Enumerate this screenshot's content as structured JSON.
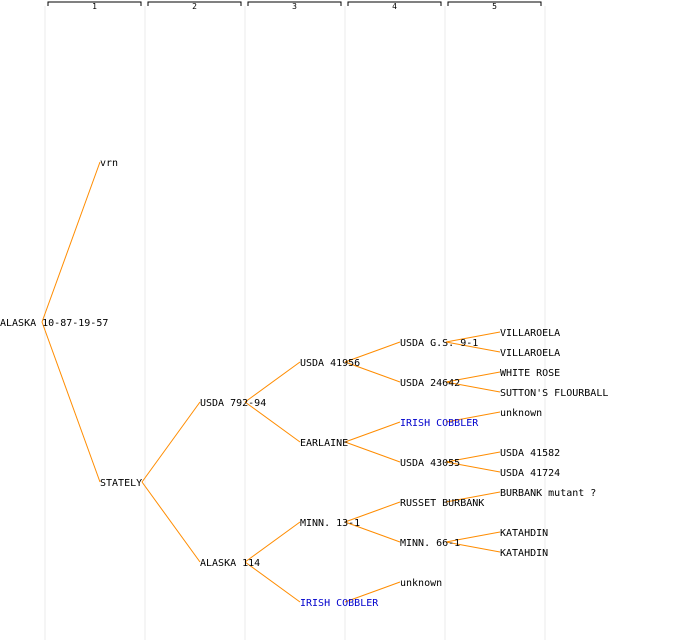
{
  "colors": {
    "edge": "#ff8c00",
    "text": "#000000",
    "link_text": "#0000cc",
    "column_divider": "#ebebeb",
    "header_bracket": "#000000"
  },
  "generations": [
    "1",
    "2",
    "3",
    "4",
    "5"
  ],
  "nodes": [
    {
      "id": "n0",
      "label": "ALASKA 10-87-19-57",
      "generation": 0,
      "row": 16,
      "style": "normal"
    },
    {
      "id": "n1",
      "label": "vrn",
      "generation": 1,
      "row": 8,
      "style": "normal"
    },
    {
      "id": "n2",
      "label": "STATELY",
      "generation": 1,
      "row": 24,
      "style": "normal"
    },
    {
      "id": "n3",
      "label": "USDA 792-94",
      "generation": 2,
      "row": 20,
      "style": "normal"
    },
    {
      "id": "n4",
      "label": "ALASKA 114",
      "generation": 2,
      "row": 28,
      "style": "normal"
    },
    {
      "id": "n5",
      "label": "USDA 41956",
      "generation": 3,
      "row": 18,
      "style": "normal"
    },
    {
      "id": "n6",
      "label": "EARLAINE",
      "generation": 3,
      "row": 22,
      "style": "normal"
    },
    {
      "id": "n7",
      "label": "MINN. 13-1",
      "generation": 3,
      "row": 26,
      "style": "normal"
    },
    {
      "id": "n8",
      "label": "IRISH COBBLER",
      "generation": 3,
      "row": 30,
      "style": "link"
    },
    {
      "id": "n9",
      "label": "USDA G.S. 9-1",
      "generation": 4,
      "row": 17,
      "style": "normal"
    },
    {
      "id": "n10",
      "label": "USDA 24642",
      "generation": 4,
      "row": 19,
      "style": "normal"
    },
    {
      "id": "n11",
      "label": "IRISH COBBLER",
      "generation": 4,
      "row": 21,
      "style": "link"
    },
    {
      "id": "n12",
      "label": "USDA 43055",
      "generation": 4,
      "row": 23,
      "style": "normal"
    },
    {
      "id": "n13",
      "label": "RUSSET BURBANK",
      "generation": 4,
      "row": 25,
      "style": "normal"
    },
    {
      "id": "n14",
      "label": "MINN. 66-1",
      "generation": 4,
      "row": 27,
      "style": "normal"
    },
    {
      "id": "n15",
      "label": "unknown",
      "generation": 4,
      "row": 29,
      "style": "normal"
    },
    {
      "id": "n16",
      "label": "VILLAROELA",
      "generation": 5,
      "row": 16.5,
      "style": "normal"
    },
    {
      "id": "n17",
      "label": "VILLAROELA",
      "generation": 5,
      "row": 17.5,
      "style": "normal"
    },
    {
      "id": "n18",
      "label": "WHITE ROSE",
      "generation": 5,
      "row": 18.5,
      "style": "normal"
    },
    {
      "id": "n19",
      "label": "SUTTON'S FLOURBALL",
      "generation": 5,
      "row": 19.5,
      "style": "normal"
    },
    {
      "id": "n20",
      "label": "unknown",
      "generation": 5,
      "row": 20.5,
      "style": "normal"
    },
    {
      "id": "n21",
      "label": "USDA 41582",
      "generation": 5,
      "row": 22.5,
      "style": "normal"
    },
    {
      "id": "n22",
      "label": "USDA 41724",
      "generation": 5,
      "row": 23.5,
      "style": "normal"
    },
    {
      "id": "n23",
      "label": "BURBANK mutant ?",
      "generation": 5,
      "row": 24.5,
      "style": "normal"
    },
    {
      "id": "n24",
      "label": "KATAHDIN",
      "generation": 5,
      "row": 26.5,
      "style": "normal"
    },
    {
      "id": "n25",
      "label": "KATAHDIN",
      "generation": 5,
      "row": 27.5,
      "style": "normal"
    }
  ],
  "edges": [
    [
      "n0",
      "n1"
    ],
    [
      "n0",
      "n2"
    ],
    [
      "n2",
      "n3"
    ],
    [
      "n2",
      "n4"
    ],
    [
      "n3",
      "n5"
    ],
    [
      "n3",
      "n6"
    ],
    [
      "n4",
      "n7"
    ],
    [
      "n4",
      "n8"
    ],
    [
      "n5",
      "n9"
    ],
    [
      "n5",
      "n10"
    ],
    [
      "n6",
      "n11"
    ],
    [
      "n6",
      "n12"
    ],
    [
      "n7",
      "n13"
    ],
    [
      "n7",
      "n14"
    ],
    [
      "n8",
      "n15"
    ],
    [
      "n9",
      "n16"
    ],
    [
      "n9",
      "n17"
    ],
    [
      "n10",
      "n18"
    ],
    [
      "n10",
      "n19"
    ],
    [
      "n11",
      "n20"
    ],
    [
      "n12",
      "n21"
    ],
    [
      "n12",
      "n22"
    ],
    [
      "n13",
      "n23"
    ],
    [
      "n14",
      "n24"
    ],
    [
      "n14",
      "n25"
    ]
  ]
}
